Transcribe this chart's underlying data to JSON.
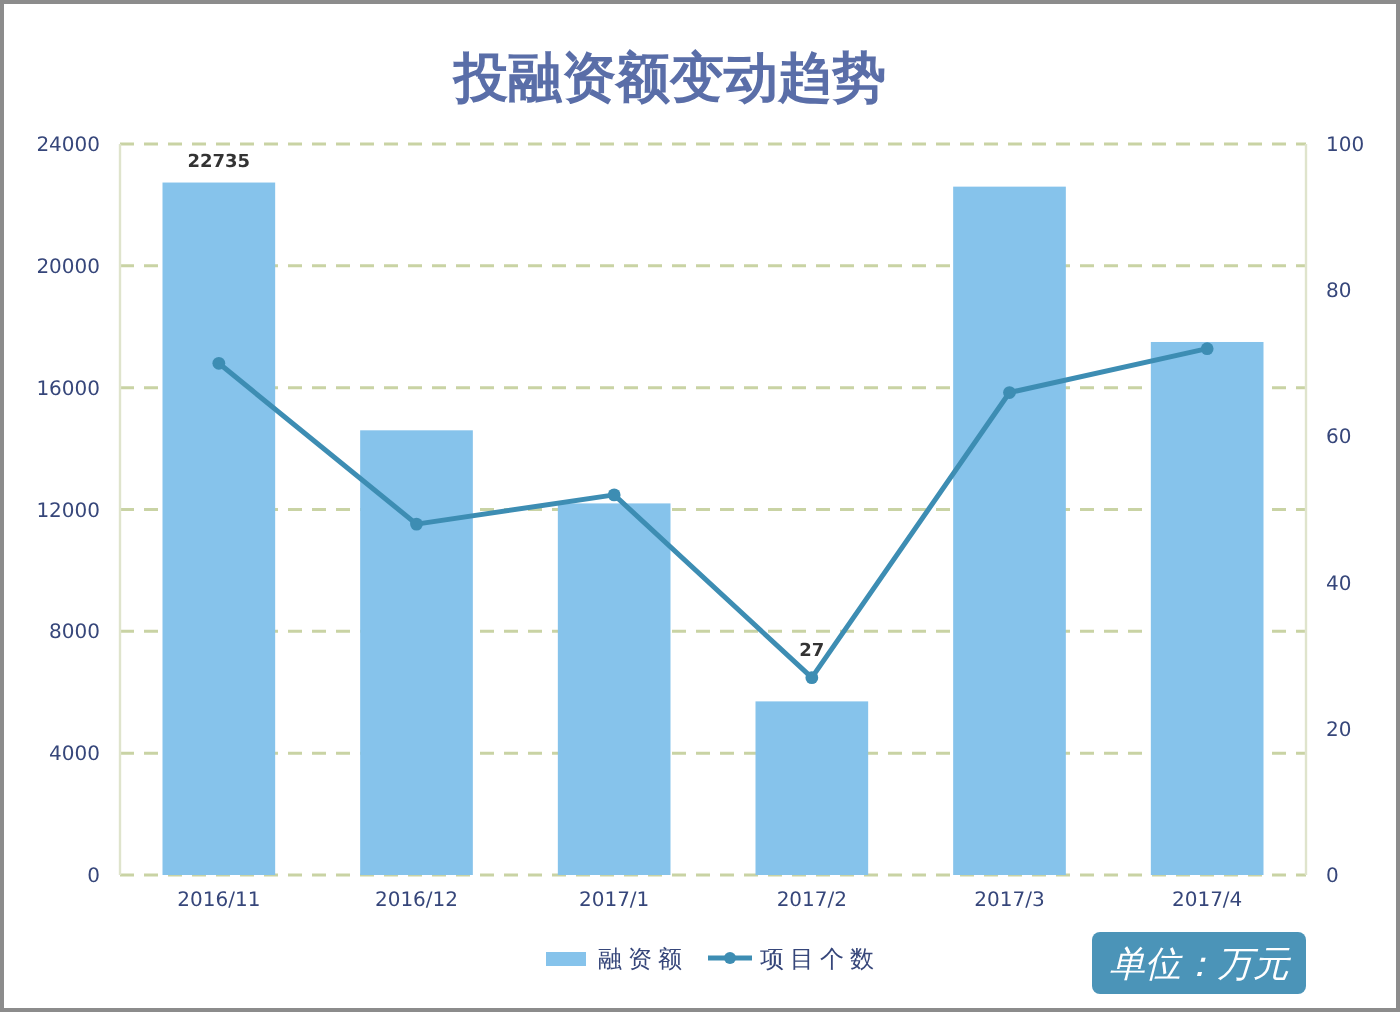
{
  "chart_data": {
    "type": "bar",
    "title": "投融资额变动趋势",
    "categories": [
      "2016/11",
      "2016/12",
      "2017/1",
      "2017/2",
      "2017/3",
      "2017/4"
    ],
    "series": [
      {
        "name": "融资额",
        "color": "#86c3eb",
        "values": [
          22735,
          14600,
          12200,
          5700,
          22600,
          17500
        ],
        "value_labels": [
          "22735",
          null,
          null,
          null,
          null,
          null
        ]
      },
      {
        "name": "项目个数",
        "type": "line",
        "axis": "y2",
        "color": "#3d8db3",
        "values": [
          70,
          48,
          52,
          27,
          66,
          72
        ],
        "value_labels": [
          null,
          null,
          null,
          "27",
          null,
          null
        ]
      }
    ],
    "ylim": [
      0,
      24000
    ],
    "yticks": [
      0,
      4000,
      8000,
      12000,
      16000,
      20000,
      24000
    ],
    "y2lim": [
      0,
      100
    ],
    "y2ticks": [
      0,
      20,
      40,
      60,
      80,
      100
    ],
    "grid": "y",
    "marker": "circle",
    "legend": "bottom",
    "annotations": [
      "单位：万元"
    ]
  }
}
